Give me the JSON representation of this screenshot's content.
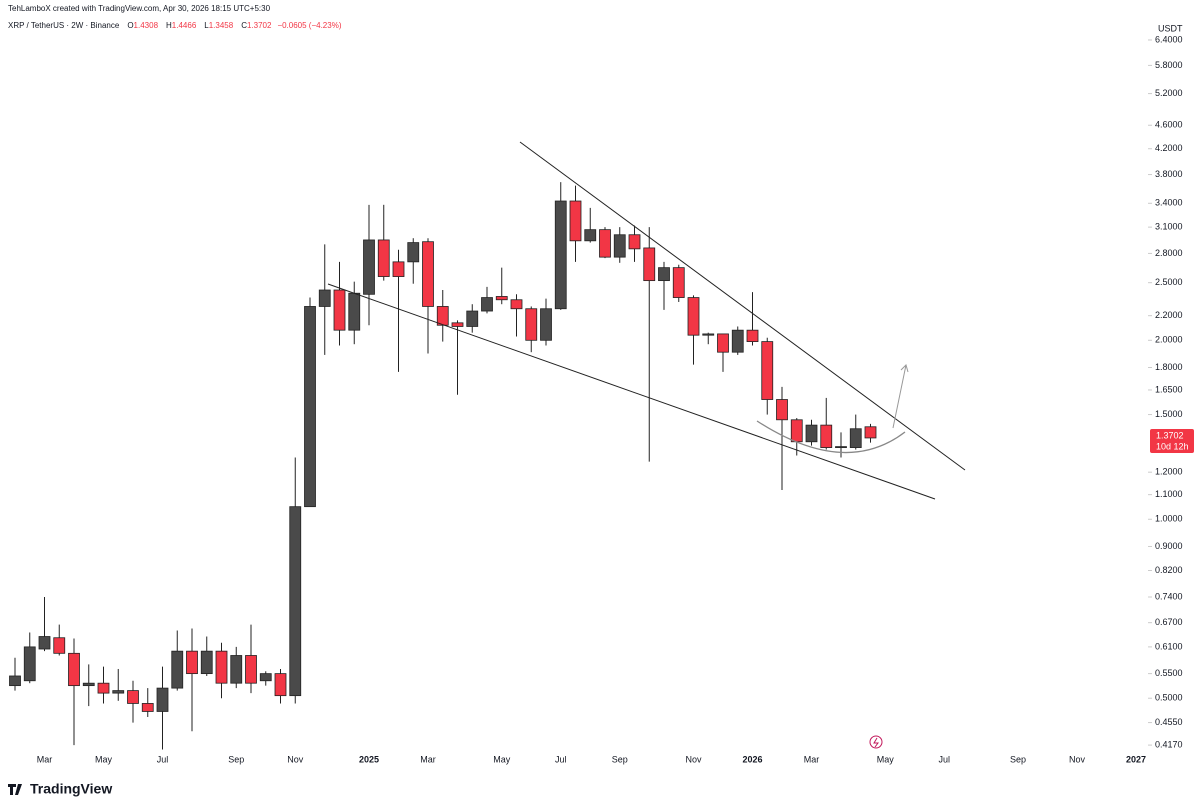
{
  "chart_data": {
    "type": "candlestick",
    "attribution": "TehLamboX created with TradingView.com, Apr 30, 2026 18:15 UTC+5:30",
    "symbol": "XRP / TetherUS · 2W · Binance",
    "ohlc_prefixes": [
      "O",
      "H",
      "L",
      "C"
    ],
    "change": "−0.0605 (−4.23%)",
    "currency": "USDT",
    "countdown": "10d 12h",
    "brand": "TradingView",
    "up_color": "#4a4a4a",
    "down_color": "#f23645",
    "log_scale": true,
    "grid": false,
    "categories": [
      null,
      null,
      "Mar",
      null,
      null,
      null,
      "May",
      null,
      null,
      null,
      "Jul",
      null,
      null,
      null,
      null,
      "Sep",
      null,
      null,
      null,
      "Nov",
      null,
      null,
      null,
      null,
      "2025",
      null,
      null,
      null,
      "Mar",
      null,
      null,
      null,
      null,
      "May",
      null,
      null,
      null,
      "Jul",
      null,
      null,
      null,
      "Sep",
      null,
      null,
      null,
      null,
      "Nov",
      null,
      null,
      null,
      "2026",
      null,
      null,
      null,
      "Mar",
      null,
      null,
      null,
      null,
      "May",
      null,
      null,
      null,
      "Jul",
      null,
      null,
      null,
      null,
      "Sep",
      null,
      null,
      null,
      "Nov",
      null,
      null,
      null,
      "2027"
    ],
    "open": [
      0.525,
      0.535,
      0.605,
      0.632,
      0.595,
      0.525,
      0.53,
      0.51,
      0.515,
      0.49,
      0.475,
      0.52,
      0.6,
      0.55,
      0.6,
      0.53,
      0.59,
      0.535,
      0.55,
      0.505,
      1.05,
      2.28,
      2.43,
      2.08,
      2.39,
      2.95,
      2.71,
      2.71,
      2.93,
      2.28,
      2.14,
      2.11,
      2.24,
      2.37,
      2.34,
      2.26,
      2.0,
      2.26,
      3.43,
      2.94,
      3.07,
      2.76,
      3.01,
      2.86,
      2.52,
      2.65,
      2.36,
      2.04,
      2.05,
      1.91,
      2.08,
      1.99,
      1.59,
      1.47,
      1.35,
      1.44,
      1.32,
      1.32,
      1.4308,
      null,
      null,
      null,
      null,
      null,
      null,
      null,
      null,
      null,
      null,
      null,
      null,
      null,
      null,
      null,
      null,
      null,
      null
    ],
    "high": [
      0.585,
      0.645,
      0.74,
      0.665,
      0.63,
      0.57,
      0.565,
      0.56,
      0.535,
      0.52,
      0.565,
      0.65,
      0.655,
      0.635,
      0.62,
      0.61,
      0.665,
      0.555,
      0.56,
      1.27,
      2.36,
      2.9,
      2.71,
      2.51,
      3.38,
      3.38,
      2.84,
      2.97,
      2.97,
      2.43,
      2.16,
      2.3,
      2.46,
      2.65,
      2.39,
      2.28,
      2.35,
      3.69,
      3.64,
      3.34,
      3.1,
      3.1,
      3.12,
      3.1,
      2.71,
      2.68,
      2.38,
      2.06,
      2.05,
      2.11,
      2.41,
      2.02,
      1.67,
      1.48,
      1.47,
      1.6,
      1.4,
      1.5,
      1.4466,
      null,
      null,
      null,
      null,
      null,
      null,
      null,
      null,
      null,
      null,
      null,
      null,
      null,
      null,
      null,
      null,
      null,
      null
    ],
    "low": [
      0.515,
      0.53,
      0.6,
      0.59,
      0.417,
      0.485,
      0.49,
      0.495,
      0.455,
      0.465,
      0.41,
      0.515,
      0.44,
      0.545,
      0.5,
      0.52,
      0.51,
      0.525,
      0.49,
      0.49,
      1.05,
      1.89,
      1.96,
      1.97,
      2.12,
      2.52,
      1.77,
      2.49,
      1.9,
      1.99,
      1.62,
      2.06,
      2.22,
      2.3,
      2.03,
      1.91,
      1.96,
      2.25,
      2.71,
      2.92,
      2.75,
      2.7,
      2.71,
      1.25,
      2.25,
      2.32,
      1.82,
      1.97,
      1.77,
      1.89,
      1.96,
      1.5,
      1.12,
      1.28,
      1.33,
      1.31,
      1.27,
      1.31,
      1.3458,
      null,
      null,
      null,
      null,
      null,
      null,
      null,
      null,
      null,
      null,
      null,
      null,
      null,
      null,
      null,
      null,
      null,
      null
    ],
    "close": [
      0.545,
      0.61,
      0.635,
      0.595,
      0.525,
      0.53,
      0.51,
      0.515,
      0.49,
      0.475,
      0.52,
      0.6,
      0.55,
      0.6,
      0.53,
      0.59,
      0.53,
      0.55,
      0.505,
      1.05,
      2.28,
      2.43,
      2.08,
      2.4,
      2.95,
      2.56,
      2.56,
      2.92,
      2.28,
      2.12,
      2.11,
      2.24,
      2.36,
      2.34,
      2.26,
      2.0,
      2.26,
      3.43,
      2.94,
      3.07,
      2.76,
      3.01,
      2.85,
      2.52,
      2.65,
      2.36,
      2.04,
      2.05,
      1.91,
      2.08,
      1.99,
      1.59,
      1.47,
      1.35,
      1.44,
      1.32,
      1.325,
      1.42,
      1.3702,
      null,
      null,
      null,
      null,
      null,
      null,
      null,
      null,
      null,
      null,
      null,
      null,
      null,
      null,
      null,
      null,
      null,
      null
    ],
    "ylim": [
      0.406,
      7.05
    ],
    "yticks": [
      {
        "value": 6.4,
        "label": "6.4000"
      },
      {
        "value": 5.8,
        "label": "5.8000"
      },
      {
        "value": 5.2,
        "label": "5.2000"
      },
      {
        "value": 4.6,
        "label": "4.6000"
      },
      {
        "value": 4.2,
        "label": "4.2000"
      },
      {
        "value": 3.8,
        "label": "3.8000"
      },
      {
        "value": 3.4,
        "label": "3.4000"
      },
      {
        "value": 3.1,
        "label": "3.1000"
      },
      {
        "value": 2.8,
        "label": "2.8000"
      },
      {
        "value": 2.5,
        "label": "2.5000"
      },
      {
        "value": 2.2,
        "label": "2.2000"
      },
      {
        "value": 2.0,
        "label": "2.0000"
      },
      {
        "value": 1.8,
        "label": "1.8000"
      },
      {
        "value": 1.65,
        "label": "1.6500"
      },
      {
        "value": 1.5,
        "label": "1.5000"
      },
      {
        "value": 1.2,
        "label": "1.2000"
      },
      {
        "value": 1.1,
        "label": "1.1000"
      },
      {
        "value": 1.0,
        "label": "1.0000"
      },
      {
        "value": 0.9,
        "label": "0.9000"
      },
      {
        "value": 0.82,
        "label": "0.8200"
      },
      {
        "value": 0.74,
        "label": "0.7400"
      },
      {
        "value": 0.67,
        "label": "0.6700"
      },
      {
        "value": 0.61,
        "label": "0.6100"
      },
      {
        "value": 0.55,
        "label": "0.5500"
      },
      {
        "value": 0.5,
        "label": "0.5000"
      },
      {
        "value": 0.455,
        "label": "0.4550"
      },
      {
        "value": 0.417,
        "label": "0.4170"
      }
    ]
  }
}
